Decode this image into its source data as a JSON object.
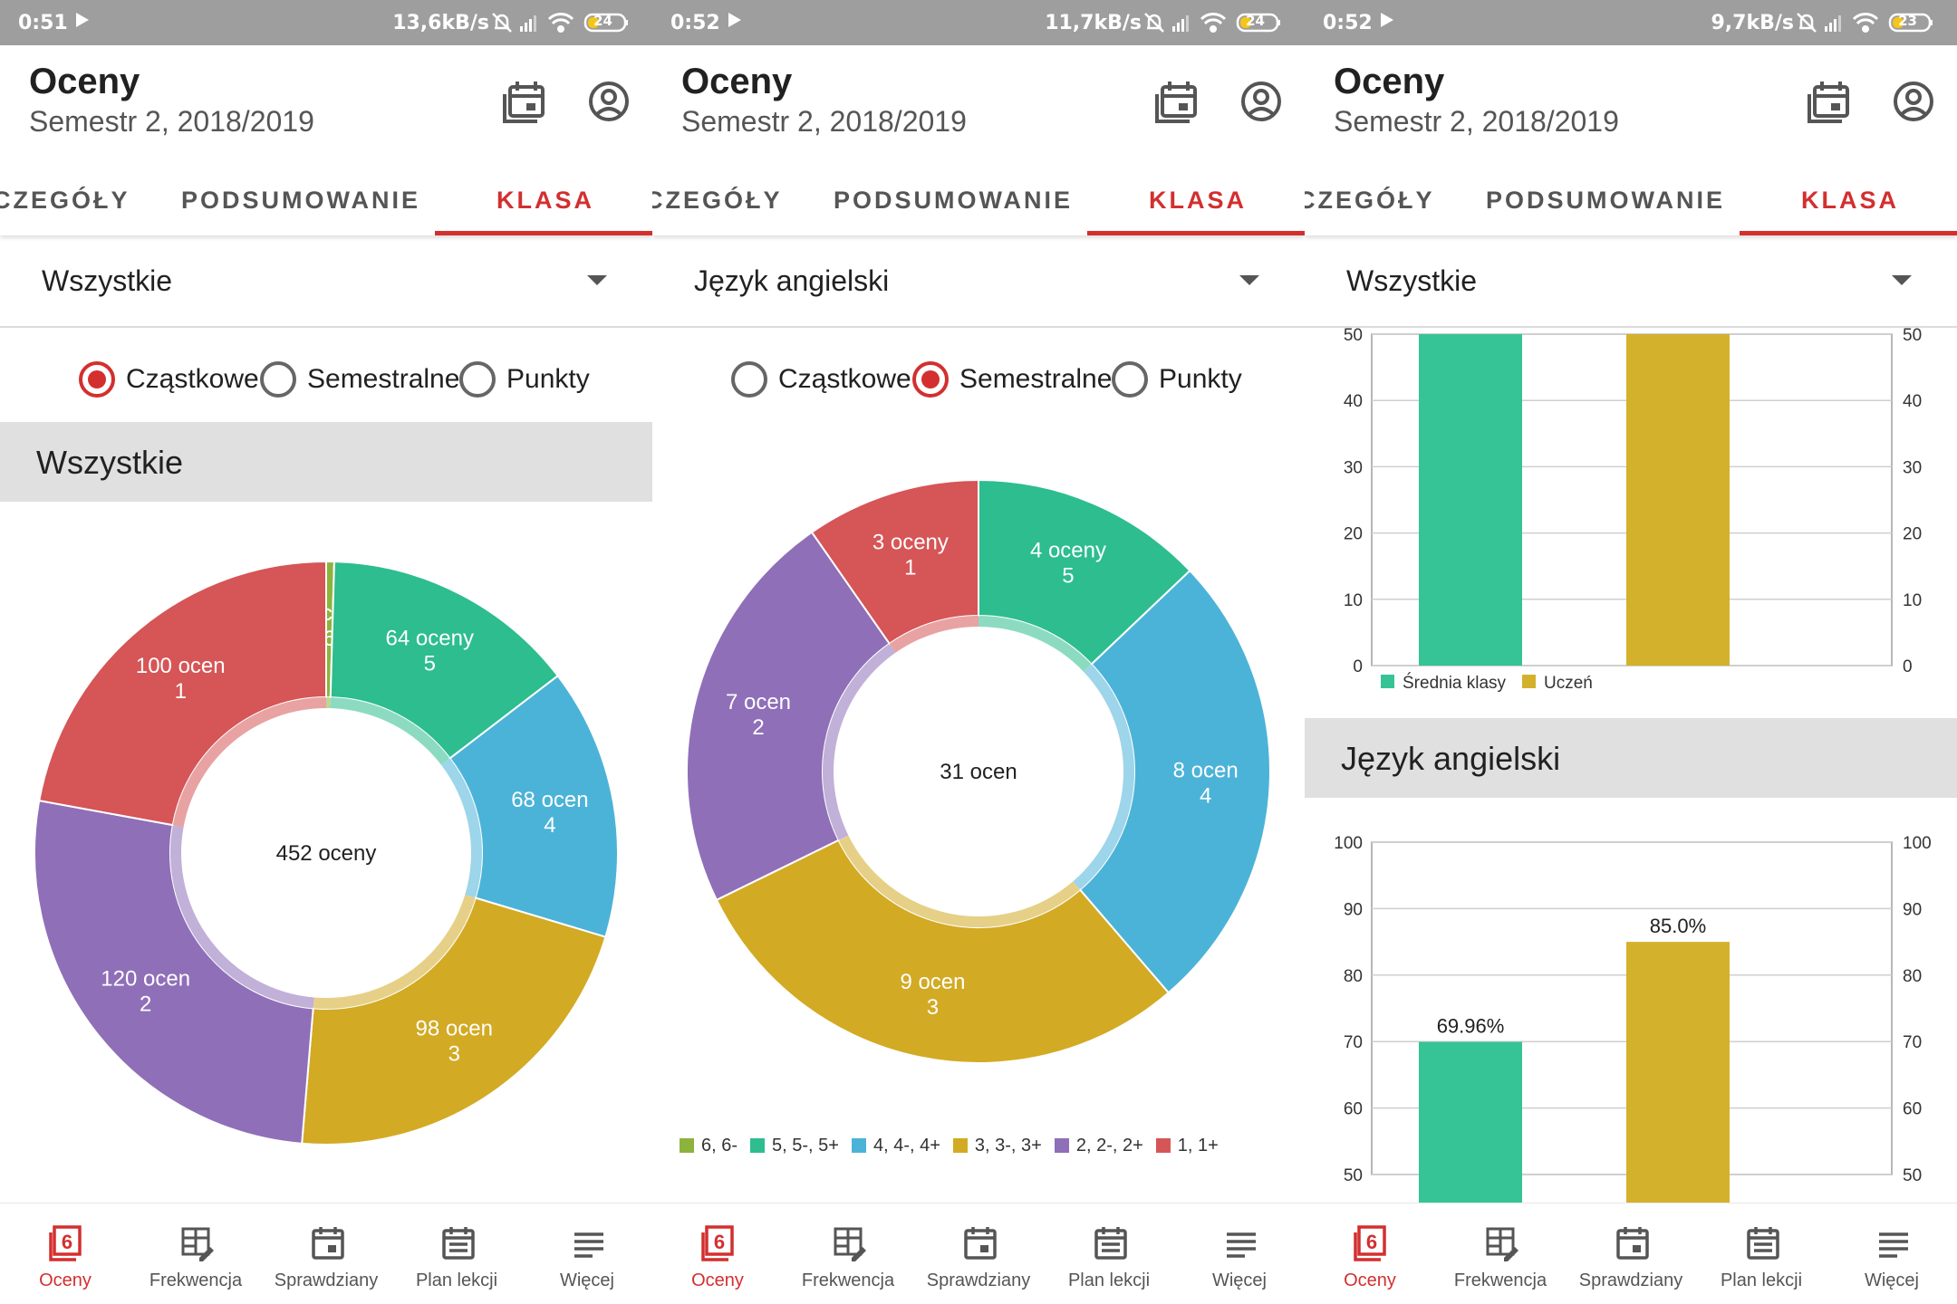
{
  "screens": [
    {
      "status": {
        "time": "0:51",
        "speed": "13,6kB/s",
        "battery": "24"
      },
      "app_title": "Oceny",
      "subtitle": "Semestr 2, 2018/2019",
      "tabs": [
        "CZEGÓŁY",
        "PODSUMOWANIE",
        "KLASA"
      ],
      "active_tab": "KLASA",
      "spinner_value": "Wszystkie",
      "radio_options": [
        "Cząstkowe",
        "Semestralne",
        "Punkty"
      ],
      "selected_radio": "Cząstkowe",
      "section_title": "Wszystkie",
      "chart_data": {
        "type": "pie",
        "center_label": "452 oceny",
        "slices": [
          {
            "grade": "6",
            "label": "2 oceny",
            "value": 2,
            "color": "#8db33c"
          },
          {
            "grade": "5",
            "label": "64 oceny",
            "value": 64,
            "color": "#2dbd8f"
          },
          {
            "grade": "4",
            "label": "68 ocen",
            "value": 68,
            "color": "#4cb3d8"
          },
          {
            "grade": "3",
            "label": "98 ocen",
            "value": 98,
            "color": "#d2aa24"
          },
          {
            "grade": "2",
            "label": "120 ocen",
            "value": 120,
            "color": "#8f6fb8"
          },
          {
            "grade": "1",
            "label": "100 ocen",
            "value": 100,
            "color": "#d65556"
          }
        ]
      }
    },
    {
      "status": {
        "time": "0:52",
        "speed": "11,7kB/s",
        "battery": "24"
      },
      "app_title": "Oceny",
      "subtitle": "Semestr 2, 2018/2019",
      "tabs": [
        "CZEGÓŁY",
        "PODSUMOWANIE",
        "KLASA"
      ],
      "active_tab": "KLASA",
      "spinner_value": "Język angielski",
      "radio_options": [
        "Cząstkowe",
        "Semestralne",
        "Punkty"
      ],
      "selected_radio": "Semestralne",
      "chart_data": {
        "type": "pie",
        "center_label": "31 ocen",
        "slices": [
          {
            "grade": "5",
            "label": "4 oceny",
            "value": 4,
            "color": "#2dbd8f"
          },
          {
            "grade": "4",
            "label": "8 ocen",
            "value": 8,
            "color": "#4cb3d8"
          },
          {
            "grade": "3",
            "label": "9 ocen",
            "value": 9,
            "color": "#d2aa24"
          },
          {
            "grade": "2",
            "label": "7 ocen",
            "value": 7,
            "color": "#8f6fb8"
          },
          {
            "grade": "1",
            "label": "3 oceny",
            "value": 3,
            "color": "#d65556"
          }
        ],
        "legend": [
          {
            "label": "6, 6-",
            "color": "#8db33c"
          },
          {
            "label": "5, 5-, 5+",
            "color": "#2dbd8f"
          },
          {
            "label": "4, 4-, 4+",
            "color": "#4cb3d8"
          },
          {
            "label": "3, 3-, 3+",
            "color": "#d2aa24"
          },
          {
            "label": "2, 2-, 2+",
            "color": "#8f6fb8"
          },
          {
            "label": "1, 1+",
            "color": "#d65556"
          }
        ]
      }
    },
    {
      "status": {
        "time": "0:52",
        "speed": "9,7kB/s",
        "battery": "23"
      },
      "app_title": "Oceny",
      "subtitle": "Semestr 2, 2018/2019",
      "tabs": [
        "CZEGÓŁY",
        "PODSUMOWANIE",
        "KLASA"
      ],
      "active_tab": "KLASA",
      "spinner_value": "Wszystkie",
      "section_title": "Język angielski",
      "chart_data": [
        {
          "type": "bar",
          "categories": [
            "Średnia klasy",
            "Uczeń"
          ],
          "values": [
            50,
            50
          ],
          "colors": [
            "#36c497",
            "#d4b12c"
          ],
          "ylim": [
            0,
            50
          ],
          "yticks": [
            0,
            10,
            20,
            30,
            40,
            50
          ],
          "legend": [
            "Średnia klasy",
            "Uczeń"
          ]
        },
        {
          "type": "bar",
          "categories": [
            "Średnia klasy",
            "Uczeń"
          ],
          "values": [
            69.96,
            85.0
          ],
          "value_labels": [
            "69.96%",
            "85.0%"
          ],
          "colors": [
            "#36c497",
            "#d4b12c"
          ],
          "ylim": [
            50,
            100
          ],
          "yticks": [
            50,
            60,
            70,
            80,
            90,
            100
          ]
        }
      ]
    }
  ],
  "bottom_nav": [
    {
      "label": "Oceny",
      "icon": "grades-icon"
    },
    {
      "label": "Frekwencja",
      "icon": "attendance-icon"
    },
    {
      "label": "Sprawdziany",
      "icon": "exams-icon"
    },
    {
      "label": "Plan lekcji",
      "icon": "timetable-icon"
    },
    {
      "label": "Więcej",
      "icon": "more-icon"
    }
  ],
  "colors": {
    "accent": "#d32f2f",
    "statusbar": "#9e9e9e",
    "section": "#e0e0e0"
  }
}
